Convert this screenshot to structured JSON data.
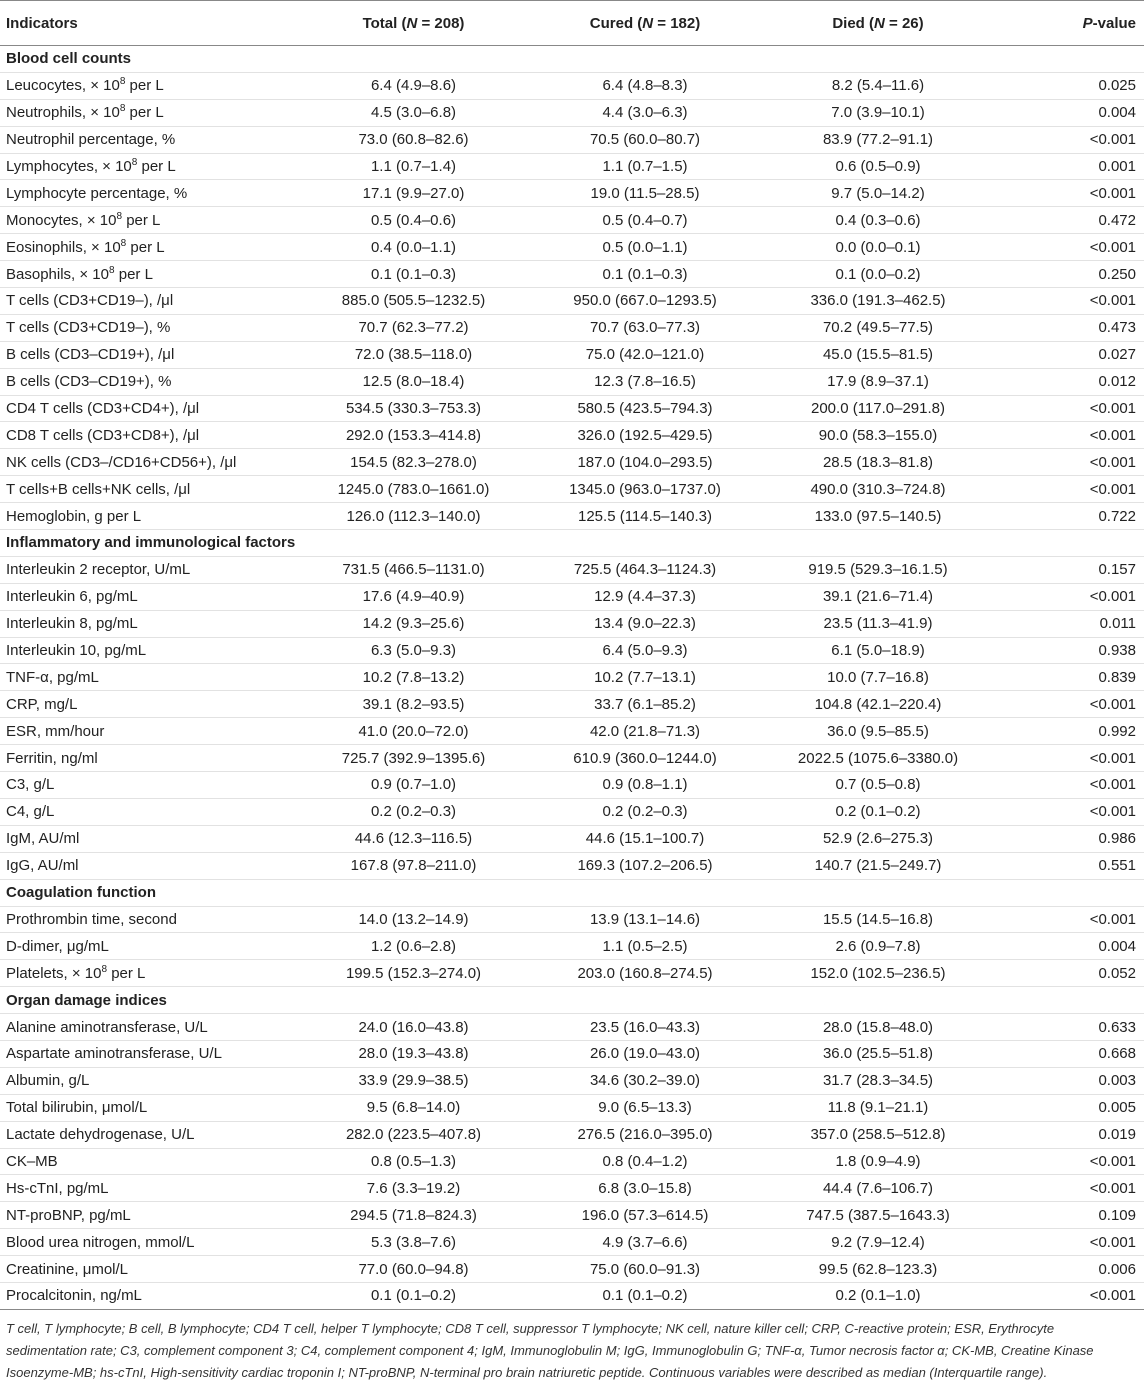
{
  "header": [
    "Indicators",
    [
      {
        "text": "Total ("
      },
      {
        "text": "N",
        "style": "i"
      },
      {
        "text": " = 208)"
      }
    ],
    [
      {
        "text": "Cured ("
      },
      {
        "text": "N",
        "style": "i"
      },
      {
        "text": " = 182)"
      }
    ],
    [
      {
        "text": "Died ("
      },
      {
        "text": "N",
        "style": "i"
      },
      {
        "text": " = 26)"
      }
    ],
    [
      {
        "text": "P",
        "style": "i"
      },
      {
        "text": "-value"
      }
    ]
  ],
  "sections": [
    {
      "title": "Blood cell counts",
      "rows": [
        [
          [
            {
              "text": "Leucocytes, × 10"
            },
            {
              "text": "8",
              "style": "sup"
            },
            {
              "text": " per L"
            }
          ],
          "6.4 (4.9–8.6)",
          "6.4 (4.8–8.3)",
          "8.2 (5.4–11.6)",
          "0.025"
        ],
        [
          [
            {
              "text": "Neutrophils, × 10"
            },
            {
              "text": "8",
              "style": "sup"
            },
            {
              "text": " per L"
            }
          ],
          "4.5 (3.0–6.8)",
          "4.4 (3.0–6.3)",
          "7.0 (3.9–10.1)",
          "0.004"
        ],
        [
          "Neutrophil percentage, %",
          "73.0 (60.8–82.6)",
          "70.5 (60.0–80.7)",
          "83.9 (77.2–91.1)",
          "<0.001"
        ],
        [
          [
            {
              "text": "Lymphocytes, × 10"
            },
            {
              "text": "8",
              "style": "sup"
            },
            {
              "text": " per L"
            }
          ],
          "1.1 (0.7–1.4)",
          "1.1 (0.7–1.5)",
          "0.6 (0.5–0.9)",
          "0.001"
        ],
        [
          "Lymphocyte percentage, %",
          "17.1 (9.9–27.0)",
          "19.0 (11.5–28.5)",
          "9.7 (5.0–14.2)",
          "<0.001"
        ],
        [
          [
            {
              "text": "Monocytes, × 10"
            },
            {
              "text": "8",
              "style": "sup"
            },
            {
              "text": " per L"
            }
          ],
          "0.5 (0.4–0.6)",
          "0.5 (0.4–0.7)",
          "0.4 (0.3–0.6)",
          "0.472"
        ],
        [
          [
            {
              "text": "Eosinophils, × 10"
            },
            {
              "text": "8",
              "style": "sup"
            },
            {
              "text": " per L"
            }
          ],
          "0.4 (0.0–1.1)",
          "0.5 (0.0–1.1)",
          "0.0 (0.0–0.1)",
          "<0.001"
        ],
        [
          [
            {
              "text": "Basophils, × 10"
            },
            {
              "text": "8",
              "style": "sup"
            },
            {
              "text": " per L"
            }
          ],
          "0.1 (0.1–0.3)",
          "0.1 (0.1–0.3)",
          "0.1 (0.0–0.2)",
          "0.250"
        ],
        [
          "T cells (CD3+CD19–), /μl",
          "885.0 (505.5–1232.5)",
          "950.0 (667.0–1293.5)",
          "336.0 (191.3–462.5)",
          "<0.001"
        ],
        [
          "T cells (CD3+CD19–), %",
          "70.7 (62.3–77.2)",
          "70.7 (63.0–77.3)",
          "70.2 (49.5–77.5)",
          "0.473"
        ],
        [
          "B cells (CD3–CD19+), /μl",
          "72.0 (38.5–118.0)",
          "75.0 (42.0–121.0)",
          "45.0 (15.5–81.5)",
          "0.027"
        ],
        [
          "B cells (CD3–CD19+), %",
          "12.5 (8.0–18.4)",
          "12.3 (7.8–16.5)",
          "17.9 (8.9–37.1)",
          "0.012"
        ],
        [
          "CD4 T cells (CD3+CD4+), /μl",
          "534.5 (330.3–753.3)",
          "580.5 (423.5–794.3)",
          "200.0 (117.0–291.8)",
          "<0.001"
        ],
        [
          "CD8 T cells (CD3+CD8+), /μl",
          "292.0 (153.3–414.8)",
          "326.0 (192.5–429.5)",
          "90.0 (58.3–155.0)",
          "<0.001"
        ],
        [
          "NK cells (CD3–/CD16+CD56+), /μl",
          "154.5 (82.3–278.0)",
          "187.0 (104.0–293.5)",
          "28.5 (18.3–81.8)",
          "<0.001"
        ],
        [
          "T cells+B cells+NK cells, /μl",
          "1245.0 (783.0–1661.0)",
          "1345.0 (963.0–1737.0)",
          "490.0 (310.3–724.8)",
          "<0.001"
        ],
        [
          "Hemoglobin, g per L",
          "126.0 (112.3–140.0)",
          "125.5 (114.5–140.3)",
          "133.0 (97.5–140.5)",
          "0.722"
        ]
      ]
    },
    {
      "title": "Inflammatory and immunological factors",
      "rows": [
        [
          "Interleukin 2 receptor, U/mL",
          "731.5 (466.5–1131.0)",
          "725.5 (464.3–1124.3)",
          "919.5 (529.3–16.1.5)",
          "0.157"
        ],
        [
          "Interleukin 6, pg/mL",
          "17.6 (4.9–40.9)",
          "12.9 (4.4–37.3)",
          "39.1 (21.6–71.4)",
          "<0.001"
        ],
        [
          "Interleukin 8, pg/mL",
          "14.2 (9.3–25.6)",
          "13.4 (9.0–22.3)",
          "23.5 (11.3–41.9)",
          "0.011"
        ],
        [
          "Interleukin 10, pg/mL",
          "6.3 (5.0–9.3)",
          "6.4 (5.0–9.3)",
          "6.1 (5.0–18.9)",
          "0.938"
        ],
        [
          "TNF-α, pg/mL",
          "10.2 (7.8–13.2)",
          "10.2 (7.7–13.1)",
          "10.0 (7.7–16.8)",
          "0.839"
        ],
        [
          "CRP, mg/L",
          "39.1 (8.2–93.5)",
          "33.7 (6.1–85.2)",
          "104.8 (42.1–220.4)",
          "<0.001"
        ],
        [
          "ESR, mm/hour",
          "41.0 (20.0–72.0)",
          "42.0 (21.8–71.3)",
          "36.0 (9.5–85.5)",
          "0.992"
        ],
        [
          "Ferritin, ng/ml",
          "725.7 (392.9–1395.6)",
          "610.9 (360.0–1244.0)",
          "2022.5 (1075.6–3380.0)",
          "<0.001"
        ],
        [
          "C3, g/L",
          "0.9 (0.7–1.0)",
          "0.9 (0.8–1.1)",
          "0.7 (0.5–0.8)",
          "<0.001"
        ],
        [
          "C4, g/L",
          "0.2 (0.2–0.3)",
          "0.2 (0.2–0.3)",
          "0.2 (0.1–0.2)",
          "<0.001"
        ],
        [
          "IgM, AU/ml",
          "44.6 (12.3–116.5)",
          "44.6 (15.1–100.7)",
          "52.9 (2.6–275.3)",
          "0.986"
        ],
        [
          "IgG, AU/ml",
          "167.8 (97.8–211.0)",
          "169.3 (107.2–206.5)",
          "140.7 (21.5–249.7)",
          "0.551"
        ]
      ]
    },
    {
      "title": "Coagulation function",
      "rows": [
        [
          "Prothrombin time, second",
          "14.0 (13.2–14.9)",
          "13.9 (13.1–14.6)",
          "15.5 (14.5–16.8)",
          "<0.001"
        ],
        [
          "D-dimer, μg/mL",
          "1.2 (0.6–2.8)",
          "1.1 (0.5–2.5)",
          "2.6 (0.9–7.8)",
          "0.004"
        ],
        [
          [
            {
              "text": "Platelets, × 10"
            },
            {
              "text": "8",
              "style": "sup"
            },
            {
              "text": " per L"
            }
          ],
          "199.5 (152.3–274.0)",
          "203.0 (160.8–274.5)",
          "152.0 (102.5–236.5)",
          "0.052"
        ]
      ]
    },
    {
      "title": "Organ damage indices",
      "rows": [
        [
          "Alanine aminotransferase, U/L",
          "24.0 (16.0–43.8)",
          "23.5 (16.0–43.3)",
          "28.0 (15.8–48.0)",
          "0.633"
        ],
        [
          "Aspartate aminotransferase, U/L",
          "28.0 (19.3–43.8)",
          "26.0 (19.0–43.0)",
          "36.0 (25.5–51.8)",
          "0.668"
        ],
        [
          "Albumin, g/L",
          "33.9 (29.9–38.5)",
          "34.6 (30.2–39.0)",
          "31.7 (28.3–34.5)",
          "0.003"
        ],
        [
          "Total bilirubin, μmol/L",
          "9.5 (6.8–14.0)",
          "9.0 (6.5–13.3)",
          "11.8 (9.1–21.1)",
          "0.005"
        ],
        [
          "Lactate dehydrogenase, U/L",
          "282.0 (223.5–407.8)",
          "276.5 (216.0–395.0)",
          "357.0 (258.5–512.8)",
          "0.019"
        ],
        [
          "CK–MB",
          "0.8 (0.5–1.3)",
          "0.8 (0.4–1.2)",
          "1.8 (0.9–4.9)",
          "<0.001"
        ],
        [
          "Hs-cTnI, pg/mL",
          "7.6 (3.3–19.2)",
          "6.8 (3.0–15.8)",
          "44.4 (7.6–106.7)",
          "<0.001"
        ],
        [
          "NT-proBNP, pg/mL",
          "294.5 (71.8–824.3)",
          "196.0 (57.3–614.5)",
          "747.5 (387.5–1643.3)",
          "0.109"
        ],
        [
          "Blood urea nitrogen, mmol/L",
          "5.3 (3.8–7.6)",
          "4.9 (3.7–6.6)",
          "9.2 (7.9–12.4)",
          "<0.001"
        ],
        [
          "Creatinine, μmol/L",
          "77.0 (60.0–94.8)",
          "75.0 (60.0–91.3)",
          "99.5 (62.8–123.3)",
          "0.006"
        ],
        [
          "Procalcitonin, ng/mL",
          "0.1 (0.1–0.2)",
          "0.1 (0.1–0.2)",
          "0.2 (0.1–1.0)",
          "<0.001"
        ]
      ]
    }
  ],
  "footnote": "T cell, T lymphocyte; B cell, B lymphocyte; CD4 T cell, helper T lymphocyte; CD8 T cell, suppressor T lymphocyte; NK cell, nature killer cell; CRP, C-reactive protein; ESR, Erythrocyte sedimentation rate; C3, complement component 3; C4, complement component 4; IgM, Immunoglobulin M; IgG, Immunoglobulin G; TNF-α, Tumor necrosis factor α; CK-MB, Creatine Kinase Isoenzyme-MB; hs-cTnI, High-sensitivity cardiac troponin I; NT-proBNP, N-terminal pro brain natriuretic peptide. Continuous variables were described as median (Interquartile range)."
}
